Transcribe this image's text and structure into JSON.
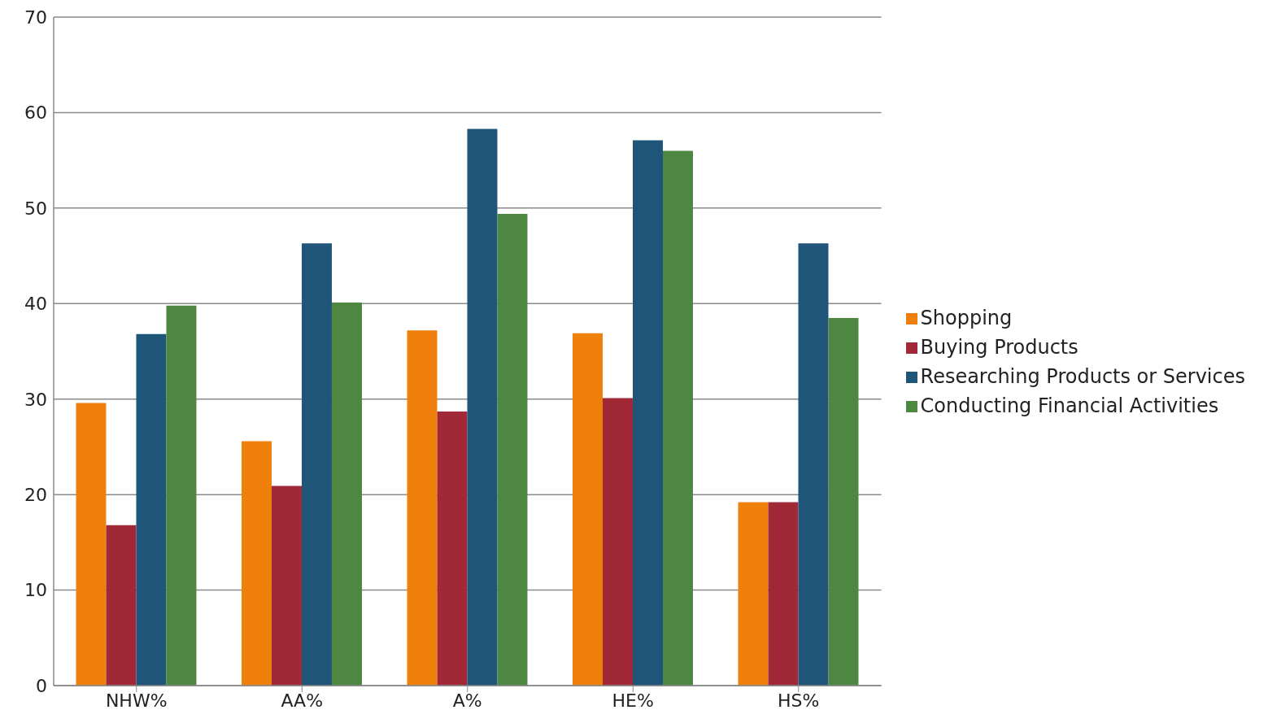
{
  "chart_data": {
    "type": "bar",
    "categories": [
      "NHW%",
      "AA%",
      "A%",
      "HE%",
      "HS%"
    ],
    "series": [
      {
        "name": "Shopping",
        "color": "#f0800c",
        "values": [
          29.6,
          25.6,
          37.2,
          36.9,
          19.2
        ]
      },
      {
        "name": "Buying Products",
        "color": "#a12837",
        "values": [
          16.8,
          20.9,
          28.7,
          30.1,
          19.2
        ]
      },
      {
        "name": "Researching Products or Services",
        "color": "#1f5579",
        "values": [
          36.8,
          46.3,
          58.3,
          57.1,
          46.3
        ]
      },
      {
        "name": "Conducting Financial Activities",
        "color": "#4e8742",
        "values": [
          39.8,
          40.1,
          49.4,
          56.0,
          38.5
        ]
      }
    ],
    "ylim": [
      0,
      70
    ],
    "yticks": [
      0,
      10,
      20,
      30,
      40,
      50,
      60,
      70
    ],
    "grid": "y",
    "legend": "right"
  }
}
